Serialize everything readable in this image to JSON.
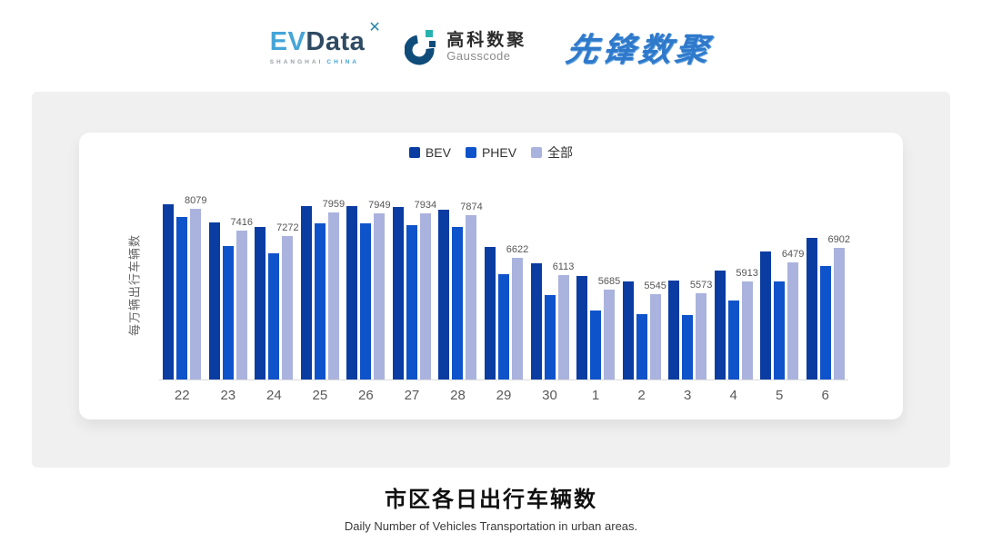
{
  "header": {
    "evdata": {
      "ev": "EV",
      "data": "Data",
      "mark": "✕",
      "sub_left": "SHANGHAI",
      "sub_right": "CHINA"
    },
    "gausscode": {
      "cn": "高科数聚",
      "en": "Gausscode"
    },
    "pioneer": {
      "text": "先锋数聚"
    }
  },
  "chart_data": {
    "type": "bar",
    "title": "市区各日出行车辆数",
    "subtitle": "Daily Number of Vehicles Transportation in urban areas.",
    "ylabel": "每万辆出行车辆数",
    "xlabel": "",
    "categories": [
      "22",
      "23",
      "24",
      "25",
      "26",
      "27",
      "28",
      "29",
      "30",
      "1",
      "2",
      "3",
      "4",
      "5",
      "6"
    ],
    "series": [
      {
        "key": "bev",
        "name": "BEV",
        "color": "#0a3ca2",
        "estimated": true,
        "values": [
          8210,
          7680,
          7540,
          8150,
          8150,
          8120,
          8040,
          6930,
          6460,
          6080,
          5920,
          5940,
          6240,
          6800,
          7220
        ]
      },
      {
        "key": "phev",
        "name": "PHEV",
        "color": "#0f53cb",
        "estimated": true,
        "values": [
          7830,
          6980,
          6750,
          7640,
          7640,
          7590,
          7540,
          6120,
          5520,
          5060,
          4940,
          4930,
          5340,
          5920,
          6380
        ]
      },
      {
        "key": "all",
        "name": "全部",
        "color": "#aab3de",
        "labels_shown": true,
        "values": [
          8079,
          7416,
          7272,
          7959,
          7949,
          7934,
          7874,
          6622,
          6113,
          5685,
          5545,
          5573,
          5913,
          6479,
          6902
        ]
      }
    ],
    "ylim": [
      3000,
      8400
    ],
    "legend_position": "top-center",
    "grid": false,
    "data_labels_series": "全部"
  }
}
